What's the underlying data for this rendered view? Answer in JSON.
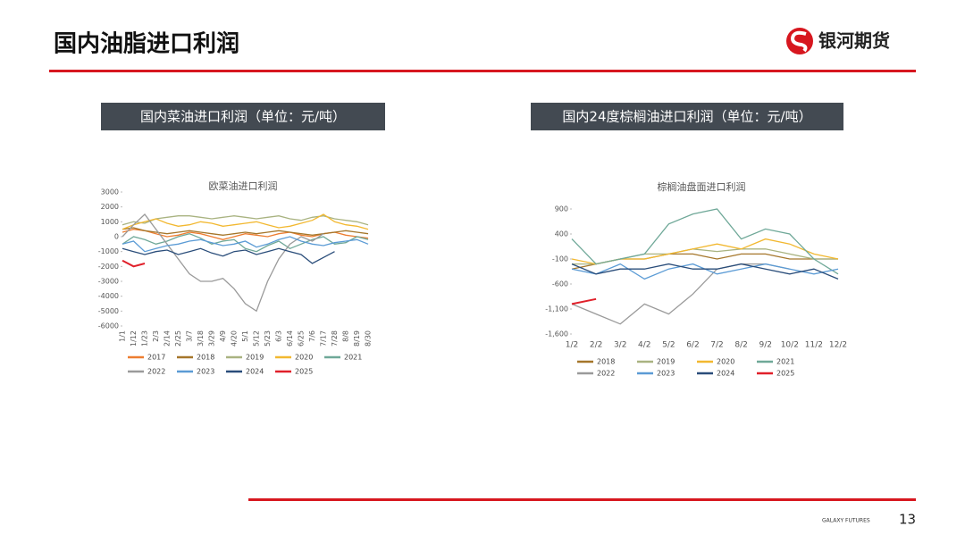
{
  "header": {
    "title": "国内油脂进口利润",
    "brand": "银河期货"
  },
  "panels": [
    "国内菜油进口利润（单位：元/吨）",
    "国内24度棕榈油进口利润（单位：元/吨）"
  ],
  "footer": {
    "brand": "GALAXY FUTURES",
    "page": "13"
  },
  "chart_data": [
    {
      "type": "line",
      "title": "欧菜油进口利润",
      "categories": [
        "1/1",
        "1/12",
        "1/23",
        "2/3",
        "2/14",
        "2/25",
        "3/7",
        "3/18",
        "3/29",
        "4/9",
        "4/20",
        "5/1",
        "5/12",
        "5/23",
        "6/3",
        "6/14",
        "6/25",
        "7/6",
        "7/17",
        "7/28",
        "8/8",
        "8/19",
        "8/30"
      ],
      "ylim": [
        -6000,
        3000
      ],
      "yticks": [
        3000,
        2000,
        1000,
        0,
        -1000,
        -2000,
        -3000,
        -4000,
        -5000,
        -6000
      ],
      "series": [
        {
          "name": "2017",
          "color": "#ed7d31",
          "values": [
            300,
            500,
            400,
            200,
            0,
            100,
            300,
            200,
            0,
            -200,
            0,
            200,
            100,
            0,
            200,
            300,
            100,
            0,
            200,
            300,
            100,
            0,
            -100
          ]
        },
        {
          "name": "2018",
          "color": "#a5762a",
          "values": [
            500,
            600,
            400,
            300,
            200,
            300,
            400,
            300,
            200,
            100,
            200,
            300,
            200,
            300,
            400,
            300,
            200,
            100,
            200,
            300,
            400,
            300,
            200
          ]
        },
        {
          "name": "2019",
          "color": "#a9b381",
          "values": [
            800,
            1000,
            900,
            1200,
            1300,
            1400,
            1400,
            1300,
            1200,
            1300,
            1400,
            1300,
            1200,
            1300,
            1400,
            1200,
            1100,
            1300,
            1400,
            1200,
            1100,
            1000,
            800
          ]
        },
        {
          "name": "2020",
          "color": "#f2b830",
          "values": [
            500,
            800,
            1000,
            1200,
            900,
            700,
            800,
            1000,
            900,
            700,
            800,
            900,
            1000,
            800,
            600,
            700,
            900,
            1100,
            1500,
            1000,
            800,
            700,
            500
          ]
        },
        {
          "name": "2021",
          "color": "#6fa898",
          "values": [
            -500,
            0,
            -200,
            -500,
            -300,
            0,
            200,
            -100,
            -500,
            -300,
            -200,
            -800,
            -1000,
            -600,
            -300,
            -800,
            -500,
            -200,
            0,
            -500,
            -400,
            0,
            -200
          ]
        },
        {
          "name": "2022",
          "color": "#9a9a9a",
          "values": [
            0,
            800,
            1500,
            500,
            -500,
            -1500,
            -2500,
            -3000,
            -3000,
            -2800,
            -3500,
            -4500,
            -5000,
            -3000,
            -1500,
            -500,
            0,
            -300,
            200,
            null,
            null,
            null,
            null
          ]
        },
        {
          "name": "2023",
          "color": "#5b9bd5",
          "values": [
            -500,
            -300,
            -1000,
            -800,
            -600,
            -500,
            -300,
            -200,
            -400,
            -600,
            -500,
            -300,
            -700,
            -500,
            -200,
            0,
            -300,
            -500,
            -600,
            -400,
            -300,
            -200,
            -500
          ]
        },
        {
          "name": "2024",
          "color": "#2a4d7a",
          "values": [
            -800,
            -1000,
            -1200,
            -1000,
            -900,
            -1200,
            -1000,
            -800,
            -1100,
            -1300,
            -1000,
            -900,
            -1200,
            -1000,
            -800,
            -1000,
            -1200,
            -1800,
            -1400,
            -1000,
            null,
            null,
            null
          ]
        },
        {
          "name": "2025",
          "color": "#e0202a",
          "values": [
            -1600,
            -2000,
            -1800,
            null,
            null,
            null,
            null,
            null,
            null,
            null,
            null,
            null,
            null,
            null,
            null,
            null,
            null,
            null,
            null,
            null,
            null,
            null,
            null
          ]
        }
      ]
    },
    {
      "type": "line",
      "title": "棕榈油盘面进口利润",
      "categories": [
        "1/2",
        "2/2",
        "3/2",
        "4/2",
        "5/2",
        "6/2",
        "7/2",
        "8/2",
        "9/2",
        "10/2",
        "11/2",
        "12/2"
      ],
      "ylim": [
        -1600,
        900
      ],
      "yticks": [
        900,
        400,
        -100,
        -600,
        {
          "value": -1100,
          "label": "-1,100"
        },
        {
          "value": -1600,
          "label": "-1,600"
        }
      ],
      "series": [
        {
          "name": "2018",
          "color": "#a5762a",
          "values": [
            -300,
            -200,
            -100,
            -100,
            0,
            0,
            -100,
            0,
            0,
            -100,
            -100,
            -100
          ]
        },
        {
          "name": "2019",
          "color": "#a9b381",
          "values": [
            -200,
            -200,
            -100,
            0,
            0,
            100,
            50,
            100,
            100,
            0,
            -100,
            -100
          ]
        },
        {
          "name": "2020",
          "color": "#f2b830",
          "values": [
            -100,
            -200,
            -100,
            -100,
            0,
            100,
            200,
            100,
            300,
            200,
            0,
            -100
          ]
        },
        {
          "name": "2021",
          "color": "#6fa898",
          "values": [
            300,
            -200,
            -100,
            0,
            600,
            800,
            900,
            300,
            500,
            400,
            -100,
            -400
          ]
        },
        {
          "name": "2022",
          "color": "#9a9a9a",
          "values": [
            -1000,
            -1200,
            -1400,
            -1000,
            -1200,
            -800,
            -300,
            -200,
            -200,
            -300,
            null,
            null
          ]
        },
        {
          "name": "2023",
          "color": "#5b9bd5",
          "values": [
            -300,
            -400,
            -200,
            -500,
            -300,
            -200,
            -400,
            -300,
            -200,
            -300,
            -400,
            -300
          ]
        },
        {
          "name": "2024",
          "color": "#2a4d7a",
          "values": [
            -200,
            -400,
            -300,
            -300,
            -200,
            -300,
            -300,
            -200,
            -300,
            -400,
            -300,
            -500
          ]
        },
        {
          "name": "2025",
          "color": "#e0202a",
          "values": [
            -1000,
            -900,
            null,
            null,
            null,
            null,
            null,
            null,
            null,
            null,
            null,
            null
          ]
        }
      ]
    }
  ]
}
